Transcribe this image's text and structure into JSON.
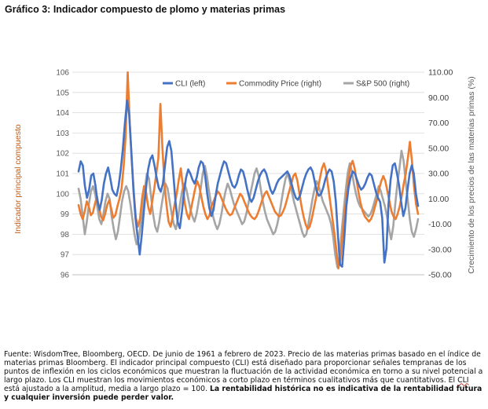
{
  "title": "Gráfico 3: Indicador compuesto de plomo y materias primas",
  "caption": {
    "part1": "Fuente: WisdomTree, Bloomberg, OECD. De junio de 1961 a febrero de 2023. Precio de las materias primas basado en el índice de materias primas Bloomberg. El indicador principal compuesto (CLI) está diseñado para proporcionar señales tempranas de los puntos de inflexión en los ciclos económicos que muestran la fluctuación de la actividad económica en torno a su nivel potencial a largo plazo. Los CLI muestran los movimientos económicos a corto plazo en términos cualitativos más que cuantitativos. El ",
    "underlined": "CLI",
    "part2": " está ajustado a la amplitud, media a largo plazo = 100. ",
    "bold": "La rentabilidad histórica no es indicativa de la rentabilidad futura y cualquier inversión puede perder valor."
  },
  "colors": {
    "cli": "#4472C4",
    "commodity": "#ED7D31",
    "sp500": "#A5A5A5",
    "left_axis_label": "#C55A11",
    "right_axis_label": "#595959",
    "grid": "#D9D9D9"
  },
  "chart_data": {
    "type": "line",
    "ylabel_left": "Indicador principal compuesto",
    "ylabel_right": "Crecimiento de los precios de las materias primas (%)",
    "left_axis": {
      "min": 96,
      "max": 106,
      "ticks": [
        "96",
        "97",
        "98",
        "99",
        "100",
        "101",
        "102",
        "103",
        "104",
        "105",
        "106"
      ]
    },
    "right_axis": {
      "min": -50,
      "max": 110,
      "ticks": [
        "-50.00",
        "-30.00",
        "-10.00",
        "10.00",
        "30.00",
        "50.00",
        "70.00",
        "90.00",
        "110.00"
      ]
    },
    "x_range": [
      "1961-06",
      "2023-02"
    ],
    "grid": true,
    "legend_position": "top",
    "series": [
      {
        "name": "CLI (left)",
        "axis": "left",
        "values": [
          101.1,
          101.6,
          101.4,
          100.4,
          99.8,
          100.2,
          100.9,
          101.0,
          100.4,
          99.6,
          99.2,
          99.7,
          100.5,
          101.0,
          101.3,
          100.8,
          100.2,
          100.0,
          99.9,
          100.4,
          101.2,
          102.2,
          103.5,
          104.6,
          103.9,
          102.1,
          100.2,
          98.8,
          97.9,
          97.0,
          98.0,
          99.2,
          100.3,
          101.2,
          101.7,
          101.9,
          101.4,
          100.8,
          100.3,
          100.1,
          100.5,
          101.4,
          102.3,
          102.6,
          102.1,
          100.9,
          99.6,
          98.6,
          98.3,
          99.1,
          100.1,
          100.8,
          101.2,
          101.0,
          100.7,
          100.5,
          100.8,
          101.3,
          101.6,
          101.5,
          100.9,
          100.0,
          99.3,
          98.9,
          99.2,
          99.9,
          100.5,
          100.9,
          101.3,
          101.6,
          101.5,
          101.1,
          100.7,
          100.4,
          100.3,
          100.5,
          100.9,
          101.2,
          101.1,
          100.7,
          100.2,
          99.8,
          99.6,
          99.8,
          100.2,
          100.6,
          100.9,
          101.1,
          101.2,
          101.0,
          100.6,
          100.2,
          100.0,
          100.2,
          100.5,
          100.7,
          100.8,
          100.9,
          101.0,
          101.1,
          100.9,
          100.5,
          100.1,
          99.8,
          99.7,
          99.9,
          100.3,
          100.7,
          101.0,
          101.2,
          101.3,
          101.1,
          100.6,
          100.1,
          99.9,
          100.0,
          100.3,
          100.7,
          101.0,
          101.2,
          101.1,
          100.6,
          99.6,
          98.0,
          96.5,
          96.4,
          97.8,
          99.4,
          100.3,
          100.8,
          101.1,
          101.0,
          100.7,
          100.4,
          100.2,
          100.3,
          100.5,
          100.8,
          101.0,
          100.9,
          100.5,
          100.1,
          99.8,
          99.6,
          98.8,
          96.6,
          97.3,
          99.5,
          100.7,
          101.4,
          101.5,
          101.0,
          100.4,
          99.6,
          98.9,
          99.3,
          100.2,
          101.0,
          101.4,
          101.0,
          100.0,
          99.4
        ]
      },
      {
        "name": "Commodity Price (right)",
        "axis": "right",
        "values": [
          5,
          -2,
          -6,
          0,
          8,
          4,
          -3,
          -1,
          6,
          12,
          3,
          -4,
          -7,
          -2,
          5,
          9,
          2,
          -5,
          -3,
          4,
          10,
          18,
          35,
          60,
          110,
          70,
          40,
          15,
          -5,
          -12,
          -6,
          10,
          20,
          15,
          4,
          -2,
          8,
          18,
          30,
          42,
          85,
          50,
          22,
          5,
          -8,
          -12,
          -4,
          6,
          14,
          25,
          34,
          20,
          6,
          -2,
          -6,
          2,
          10,
          18,
          24,
          20,
          12,
          4,
          -2,
          -6,
          -3,
          4,
          8,
          12,
          16,
          14,
          10,
          6,
          2,
          -1,
          -3,
          -2,
          2,
          6,
          10,
          14,
          12,
          8,
          4,
          0,
          -3,
          -5,
          -6,
          -4,
          0,
          5,
          10,
          14,
          16,
          12,
          8,
          4,
          0,
          -2,
          -4,
          -3,
          0,
          4,
          10,
          16,
          22,
          28,
          30,
          24,
          14,
          4,
          -4,
          -10,
          -14,
          -12,
          -6,
          2,
          10,
          18,
          26,
          34,
          38,
          32,
          20,
          8,
          -4,
          -16,
          -30,
          -45,
          -38,
          -20,
          -4,
          12,
          26,
          36,
          40,
          34,
          24,
          14,
          6,
          0,
          -4,
          -6,
          -8,
          -6,
          -2,
          4,
          10,
          18,
          24,
          28,
          24,
          16,
          8,
          0,
          -4,
          -6,
          -2,
          4,
          12,
          22,
          30,
          42,
          55,
          40,
          20,
          6,
          -2
        ]
      },
      {
        "name": "S&P 500 (right)",
        "axis": "right",
        "values": [
          18,
          10,
          -4,
          -18,
          -8,
          6,
          16,
          20,
          14,
          4,
          -6,
          -10,
          -2,
          8,
          14,
          10,
          -4,
          -14,
          -22,
          -16,
          -4,
          8,
          16,
          20,
          16,
          6,
          -6,
          -18,
          -26,
          -22,
          -10,
          6,
          18,
          30,
          26,
          12,
          -2,
          -12,
          -16,
          -8,
          4,
          14,
          22,
          18,
          8,
          -2,
          -10,
          -14,
          -6,
          6,
          16,
          22,
          18,
          10,
          2,
          -4,
          -8,
          -2,
          8,
          18,
          30,
          36,
          28,
          16,
          6,
          -4,
          -10,
          -14,
          -10,
          -2,
          8,
          16,
          22,
          18,
          12,
          6,
          2,
          -2,
          -6,
          -10,
          -8,
          -2,
          6,
          14,
          22,
          30,
          34,
          28,
          18,
          8,
          0,
          -6,
          -10,
          -14,
          -18,
          -16,
          -10,
          -2,
          8,
          18,
          26,
          30,
          24,
          16,
          8,
          2,
          -4,
          -10,
          -16,
          -20,
          -18,
          -10,
          0,
          10,
          18,
          24,
          20,
          14,
          8,
          4,
          0,
          -4,
          -10,
          -20,
          -34,
          -44,
          -36,
          -18,
          0,
          16,
          30,
          38,
          32,
          22,
          14,
          8,
          4,
          2,
          0,
          -2,
          -4,
          -2,
          2,
          8,
          14,
          20,
          16,
          10,
          4,
          -4,
          -14,
          -22,
          -12,
          6,
          22,
          34,
          48,
          40,
          24,
          10,
          -6,
          -16,
          -20,
          -14,
          -6
        ]
      }
    ]
  }
}
